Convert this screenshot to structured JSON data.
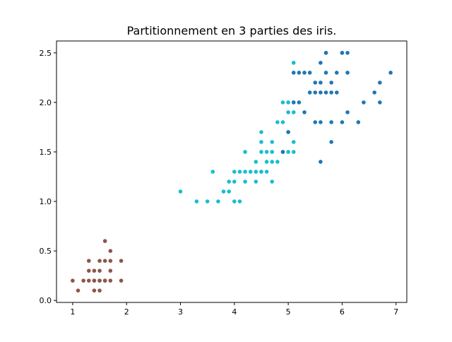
{
  "chart_data": {
    "type": "scatter",
    "title": "Partitionnement en 3 parties des iris.",
    "xlabel": "",
    "ylabel": "",
    "xlim": [
      0.7,
      7.2
    ],
    "ylim": [
      -0.02,
      2.62
    ],
    "xticks": [
      1,
      2,
      3,
      4,
      5,
      6,
      7
    ],
    "xtick_labels": [
      "1",
      "2",
      "3",
      "4",
      "5",
      "6",
      "7"
    ],
    "yticks": [
      0.0,
      0.5,
      1.0,
      1.5,
      2.0,
      2.5
    ],
    "ytick_labels": [
      "0.0",
      "0.5",
      "1.0",
      "1.5",
      "2.0",
      "2.5"
    ],
    "grid": false,
    "series": [
      {
        "color": "#8c564b",
        "x": [
          1.0,
          1.1,
          1.2,
          1.3,
          1.3,
          1.3,
          1.4,
          1.4,
          1.4,
          1.4,
          1.5,
          1.5,
          1.5,
          1.5,
          1.5,
          1.6,
          1.6,
          1.6,
          1.6,
          1.7,
          1.7,
          1.7,
          1.7,
          1.9,
          1.9
        ],
        "y": [
          0.2,
          0.1,
          0.2,
          0.2,
          0.3,
          0.4,
          0.1,
          0.2,
          0.3,
          0.2,
          0.1,
          0.2,
          0.3,
          0.4,
          0.2,
          0.2,
          0.4,
          0.6,
          0.2,
          0.2,
          0.3,
          0.4,
          0.5,
          0.2,
          0.4
        ]
      },
      {
        "color": "#17becf",
        "x": [
          3.0,
          3.3,
          3.5,
          3.6,
          3.7,
          3.8,
          3.9,
          3.9,
          4.0,
          4.0,
          4.0,
          4.1,
          4.1,
          4.2,
          4.2,
          4.2,
          4.3,
          4.4,
          4.4,
          4.4,
          4.5,
          4.5,
          4.5,
          4.5,
          4.6,
          4.6,
          4.7,
          4.7,
          4.7,
          4.7,
          4.8,
          4.8,
          4.9,
          4.9,
          4.9,
          5.0,
          5.0,
          5.0,
          5.0,
          5.1,
          5.1,
          5.1,
          5.1,
          5.1,
          4.5,
          4.6
        ],
        "y": [
          1.1,
          1.0,
          1.0,
          1.3,
          1.0,
          1.1,
          1.1,
          1.2,
          1.0,
          1.2,
          1.3,
          1.0,
          1.3,
          1.2,
          1.3,
          1.5,
          1.3,
          1.2,
          1.3,
          1.4,
          1.3,
          1.5,
          1.6,
          1.7,
          1.4,
          1.5,
          1.2,
          1.4,
          1.5,
          1.6,
          1.4,
          1.8,
          1.5,
          1.8,
          2.0,
          1.5,
          1.7,
          1.9,
          2.0,
          1.5,
          1.6,
          1.9,
          2.0,
          2.4,
          1.3,
          1.3
        ]
      },
      {
        "color": "#1f77b4",
        "x": [
          4.9,
          5.0,
          5.1,
          5.1,
          5.2,
          5.2,
          5.3,
          5.3,
          5.4,
          5.4,
          5.5,
          5.5,
          5.5,
          5.6,
          5.6,
          5.6,
          5.6,
          5.6,
          5.7,
          5.7,
          5.7,
          5.7,
          5.8,
          5.8,
          5.8,
          5.8,
          5.9,
          5.9,
          6.0,
          6.0,
          6.0,
          6.1,
          6.1,
          6.1,
          6.3,
          6.4,
          6.6,
          6.7,
          6.7,
          6.9
        ],
        "y": [
          1.5,
          1.7,
          2.0,
          2.3,
          2.0,
          2.3,
          1.9,
          2.3,
          2.1,
          2.3,
          1.8,
          2.1,
          2.2,
          1.4,
          1.8,
          2.1,
          2.2,
          2.4,
          2.1,
          2.3,
          2.5,
          2.5,
          1.6,
          1.8,
          2.2,
          2.1,
          2.1,
          2.3,
          1.8,
          2.5,
          2.5,
          1.9,
          2.3,
          2.5,
          1.8,
          2.0,
          2.1,
          2.0,
          2.2,
          2.3
        ]
      }
    ]
  }
}
